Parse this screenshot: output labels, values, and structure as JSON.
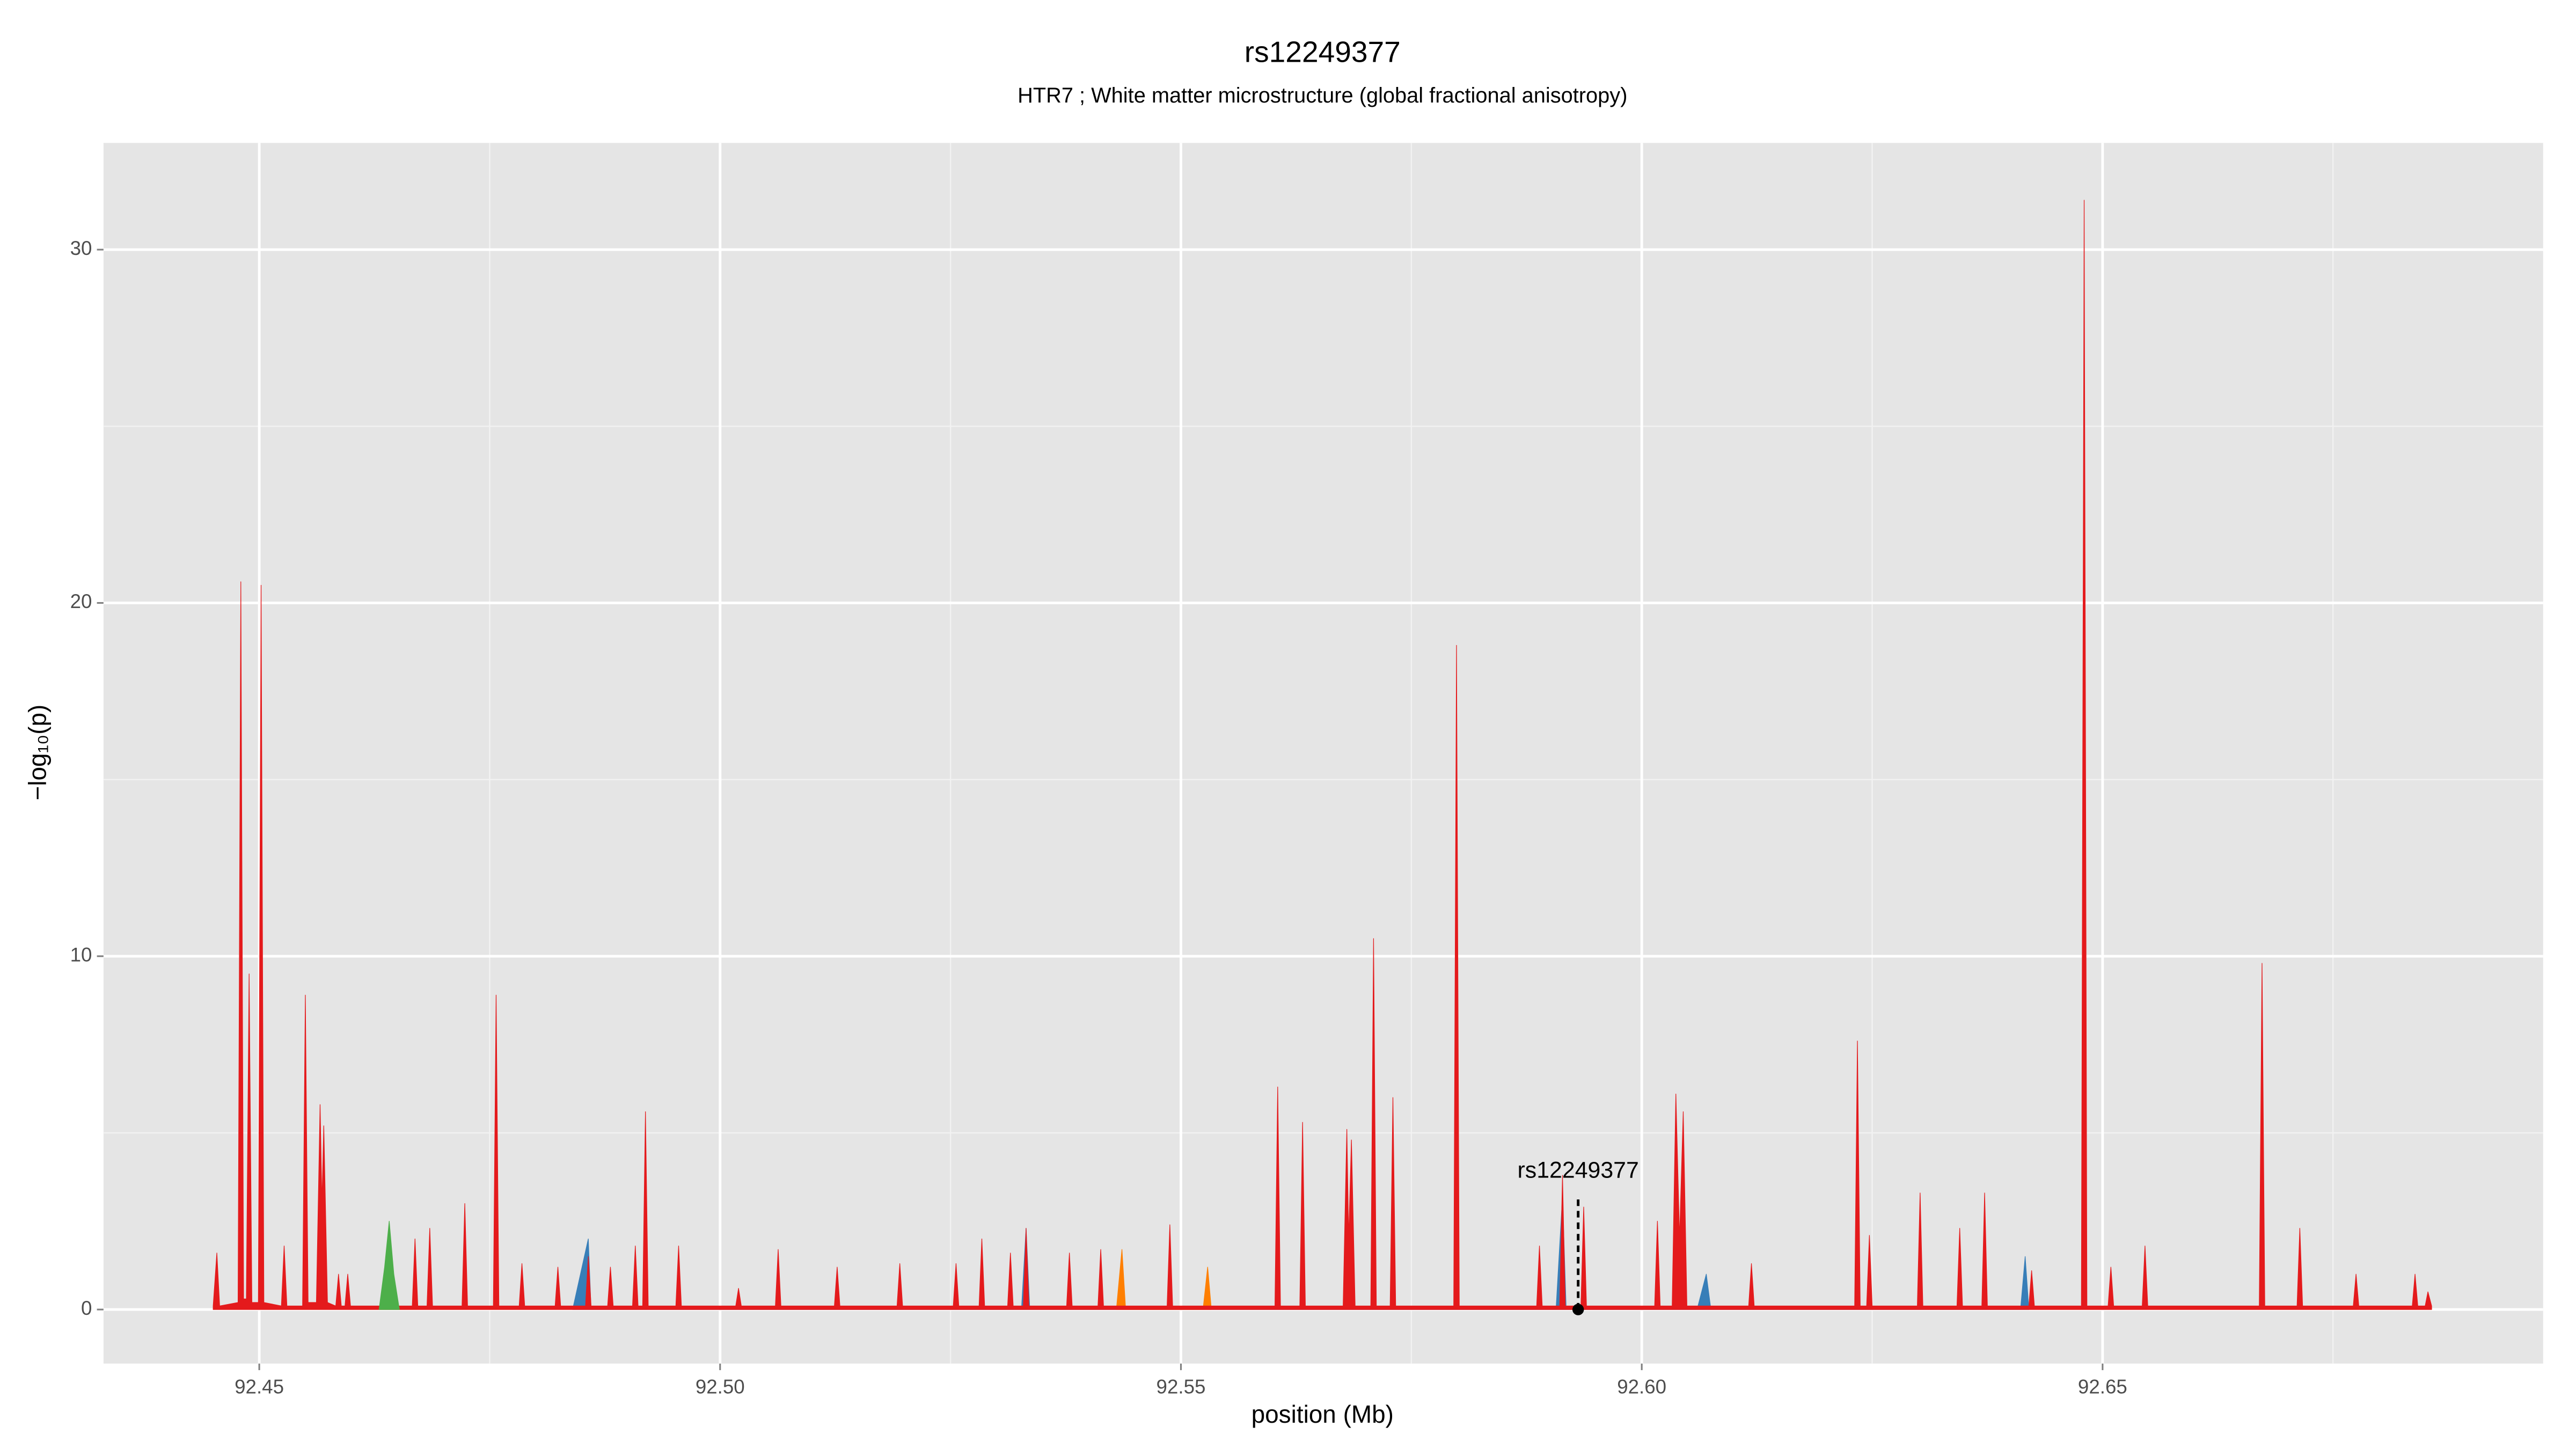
{
  "chart_data": {
    "type": "area",
    "title": "rs12249377",
    "subtitle": "HTR7 ; White matter microstructure (global fractional anisotropy)",
    "x_label": "position (Mb)",
    "y_label": "−log₁₀(p)",
    "xlim": [
      92.4331,
      92.6978
    ],
    "ylim": [
      -1.53,
      33.02
    ],
    "xticks": [
      92.45,
      {
        "value": 92.5,
        "label": "92.50"
      },
      92.55,
      {
        "value": 92.6,
        "label": "92.60"
      },
      92.65
    ],
    "yticks": [
      0,
      10,
      20,
      30
    ],
    "x_minor_breaks": [
      92.475,
      92.525,
      92.575,
      92.625,
      92.675
    ],
    "y_minor_breaks": [
      5,
      15,
      25
    ],
    "grid": true,
    "series": [
      {
        "color": "#377eb8",
        "x": [
          92.484,
          92.4857,
          92.486,
          92.5327,
          92.5332,
          92.5336,
          92.5907,
          92.5914,
          92.5918,
          92.606,
          92.607,
          92.6075,
          92.6411,
          92.6416,
          92.642
        ],
        "values": [
          0,
          2.0,
          0,
          0,
          2.3,
          0,
          0,
          3.2,
          0,
          0,
          1.0,
          0,
          0,
          1.5,
          0
        ]
      },
      {
        "color": "#ff7f00",
        "x": [
          92.543,
          92.5436,
          92.544,
          92.5524,
          92.5529,
          92.5533
        ],
        "values": [
          0,
          1.7,
          0,
          0,
          1.2,
          0
        ]
      },
      {
        "color": "#e41a1c",
        "x": [
          92.445,
          92.4454,
          92.4457,
          92.4477,
          92.448,
          92.4483,
          92.4486,
          92.4489,
          92.4492,
          92.4499,
          92.4502,
          92.4505,
          92.4524,
          92.4527,
          92.453,
          92.4547,
          92.455,
          92.4553,
          92.4562,
          92.4566,
          92.4568,
          92.457,
          92.4574,
          92.4583,
          92.4586,
          92.4589,
          92.4593,
          92.4596,
          92.4599,
          92.4666,
          92.4669,
          92.4672,
          92.4682,
          92.4685,
          92.4688,
          92.472,
          92.4723,
          92.4726,
          92.4754,
          92.4757,
          92.476,
          92.4782,
          92.4785,
          92.4788,
          92.4821,
          92.4824,
          92.4827,
          92.4854,
          92.4857,
          92.486,
          92.4878,
          92.4881,
          92.4884,
          92.4905,
          92.4908,
          92.4911,
          92.4916,
          92.4919,
          92.4922,
          92.4952,
          92.4955,
          92.4958,
          92.5017,
          92.502,
          92.5023,
          92.506,
          92.5063,
          92.5066,
          92.5124,
          92.5127,
          92.513,
          92.5192,
          92.5195,
          92.5198,
          92.5253,
          92.5256,
          92.5259,
          92.5281,
          92.5284,
          92.5287,
          92.5312,
          92.5315,
          92.5318,
          92.5329,
          92.5332,
          92.5335,
          92.5376,
          92.5379,
          92.5382,
          92.541,
          92.5413,
          92.5416,
          92.5485,
          92.5488,
          92.5491,
          92.5602,
          92.5605,
          92.5608,
          92.5629,
          92.5632,
          92.5635,
          92.5676,
          92.568,
          92.5682,
          92.5685,
          92.5689,
          92.5706,
          92.5709,
          92.5712,
          92.5727,
          92.573,
          92.5733,
          92.5796,
          92.5799,
          92.5802,
          92.5886,
          92.5889,
          92.5892,
          92.5911,
          92.5914,
          92.5917,
          92.5934,
          92.5937,
          92.594,
          92.6014,
          92.6017,
          92.602,
          92.6033,
          92.6037,
          92.6041,
          92.6045,
          92.6049,
          92.6116,
          92.6119,
          92.6122,
          92.6231,
          92.6234,
          92.6237,
          92.6244,
          92.6247,
          92.625,
          92.6299,
          92.6302,
          92.6305,
          92.6342,
          92.6345,
          92.6348,
          92.6369,
          92.6372,
          92.6375,
          92.642,
          92.6423,
          92.6426,
          92.6477,
          92.648,
          92.6483,
          92.6506,
          92.6509,
          92.6512,
          92.6543,
          92.6546,
          92.6549,
          92.667,
          92.6673,
          92.6676,
          92.6711,
          92.6714,
          92.6717,
          92.6772,
          92.6775,
          92.6778,
          92.6836,
          92.6839,
          92.6842,
          92.685,
          92.6853,
          92.6857
        ],
        "values": [
          0.1,
          1.6,
          0.1,
          0.2,
          20.6,
          0.3,
          0.3,
          9.5,
          0.2,
          0.2,
          20.5,
          0.2,
          0.1,
          1.8,
          0.1,
          0.1,
          8.9,
          0.2,
          0.2,
          5.8,
          3.0,
          5.2,
          0.2,
          0.1,
          1.0,
          0.1,
          0.1,
          1.0,
          0.1,
          0.1,
          2.0,
          0.1,
          0.1,
          2.3,
          0.1,
          0.1,
          3.0,
          0.1,
          0.1,
          8.9,
          0.1,
          0.1,
          1.3,
          0.1,
          0.1,
          1.2,
          0.1,
          0.1,
          1.5,
          0.1,
          0.1,
          1.2,
          0.1,
          0.1,
          1.8,
          0.1,
          0.1,
          5.6,
          0.1,
          0.1,
          1.8,
          0.1,
          0.1,
          0.6,
          0.1,
          0.1,
          1.7,
          0.1,
          0.1,
          1.2,
          0.1,
          0.1,
          1.3,
          0.1,
          0.1,
          1.3,
          0.1,
          0.1,
          2.0,
          0.1,
          0.1,
          1.6,
          0.1,
          0.1,
          2.3,
          0.1,
          0.1,
          1.6,
          0.1,
          0.1,
          1.7,
          0.1,
          0.1,
          2.4,
          0.1,
          0.1,
          6.3,
          0.1,
          0.1,
          5.3,
          0.1,
          0.1,
          5.1,
          2.0,
          4.8,
          0.1,
          0.1,
          10.5,
          0.1,
          0.1,
          6.0,
          0.1,
          0.1,
          18.8,
          0.1,
          0.1,
          1.8,
          0.1,
          0.1,
          3.8,
          0.1,
          0.1,
          2.9,
          0.1,
          0.1,
          2.5,
          0.1,
          0.1,
          6.1,
          2.0,
          5.6,
          0.1,
          0.1,
          1.3,
          0.1,
          0.1,
          7.6,
          0.1,
          0.1,
          2.1,
          0.1,
          0.1,
          3.3,
          0.1,
          0.1,
          2.3,
          0.1,
          0.1,
          3.3,
          0.1,
          0.1,
          1.1,
          0.1,
          0.1,
          31.4,
          0.1,
          0.1,
          1.2,
          0.1,
          0.1,
          1.8,
          0.1,
          0.1,
          9.8,
          0.1,
          0.1,
          2.3,
          0.1,
          0.1,
          1.0,
          0.1,
          0.1,
          1.0,
          0.1,
          0.1,
          0.5,
          0.1
        ]
      },
      {
        "color": "#4daf4a",
        "x": [
          92.463,
          92.4636,
          92.4641,
          92.4646,
          92.4652
        ],
        "values": [
          0,
          1.2,
          2.5,
          1.0,
          0
        ]
      }
    ],
    "annotation": {
      "text": "rs12249377",
      "x": 92.5931,
      "y": 0
    }
  }
}
